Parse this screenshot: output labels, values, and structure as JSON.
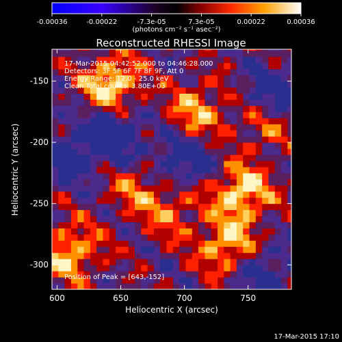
{
  "chart_data": {
    "type": "heatmap",
    "title": "Reconstructed RHESSI Image",
    "xlabel": "Heliocentric X (arcsec)",
    "ylabel": "Heliocentric Y (arcsec)",
    "xlim": [
      596,
      784
    ],
    "ylim": [
      -320,
      -124
    ],
    "x_ticks": [
      600,
      650,
      700,
      750
    ],
    "y_ticks": [
      -150,
      -200,
      -250,
      -300
    ],
    "colorbar": {
      "min": -0.00036,
      "max": 0.00036,
      "tick_labels": [
        "-0.00036",
        "-0.00022",
        "-7.3e-05",
        "7.3e-05",
        "0.00022",
        "0.00036"
      ],
      "unit_label": "(photons cm⁻² s⁻¹ asec⁻²)"
    },
    "info_lines": [
      "17-Mar-2015 04:42:52.000 to 04:46:28.000",
      "Detectors: 3F 5F 6F 7F 8F 9F, Att 0",
      "Energy Range: 12.0 - 25.0 keV",
      "Clean     Total counts: 3.80E+03"
    ],
    "peak_label": "Position of Peak = [643,-152]",
    "bright_regions": [
      {
        "x": 643,
        "y": -152,
        "intensity": 1.0
      },
      {
        "x": 610,
        "y": -290,
        "intensity": 0.85
      },
      {
        "x": 745,
        "y": -240,
        "intensity": 0.95
      },
      {
        "x": 710,
        "y": -175,
        "intensity": 0.7
      },
      {
        "x": 765,
        "y": -180,
        "intensity": 0.8
      },
      {
        "x": 735,
        "y": -285,
        "intensity": 0.9
      },
      {
        "x": 690,
        "y": -255,
        "intensity": 0.55
      },
      {
        "x": 660,
        "y": -235,
        "intensity": 0.5
      }
    ],
    "dark_regions": [
      {
        "x": 770,
        "y": -165,
        "intensity": -1.0
      },
      {
        "x": 645,
        "y": -195,
        "intensity": -0.8
      },
      {
        "x": 610,
        "y": -210,
        "intensity": -0.6
      },
      {
        "x": 700,
        "y": -215,
        "intensity": -0.7
      },
      {
        "x": 760,
        "y": -305,
        "intensity": -0.6
      }
    ]
  },
  "footer": {
    "timestamp": "17-Mar-2015 17:10"
  }
}
